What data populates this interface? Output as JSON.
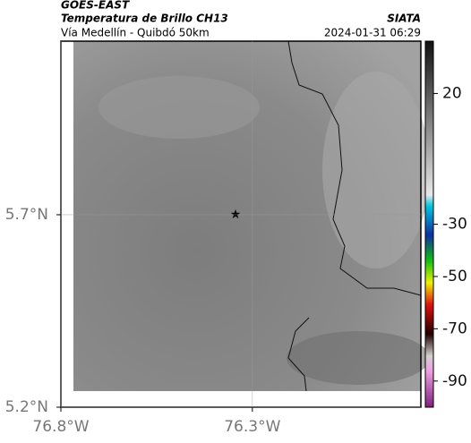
{
  "header": {
    "title": "GOES-EAST",
    "subtitle": "Temperatura de Brillo CH13",
    "source": "SIATA",
    "route": "Vía Medellín - Quibdó 50km",
    "timestamp": "2024-01-31 06:29"
  },
  "map": {
    "xlim": [
      -76.8,
      -75.86
    ],
    "ylim": [
      5.2,
      6.151
    ],
    "xticks": [
      {
        "value": -76.8,
        "label": "76.8°W"
      },
      {
        "value": -76.3,
        "label": "76.3°W"
      }
    ],
    "yticks": [
      {
        "value": 5.2,
        "label": "5.2°N"
      },
      {
        "value": 5.7,
        "label": "5.7°N"
      }
    ]
  },
  "colorbar": {
    "lim": [
      -100,
      40
    ],
    "ticks": [
      20,
      -30,
      -50,
      -70,
      -90
    ]
  }
}
